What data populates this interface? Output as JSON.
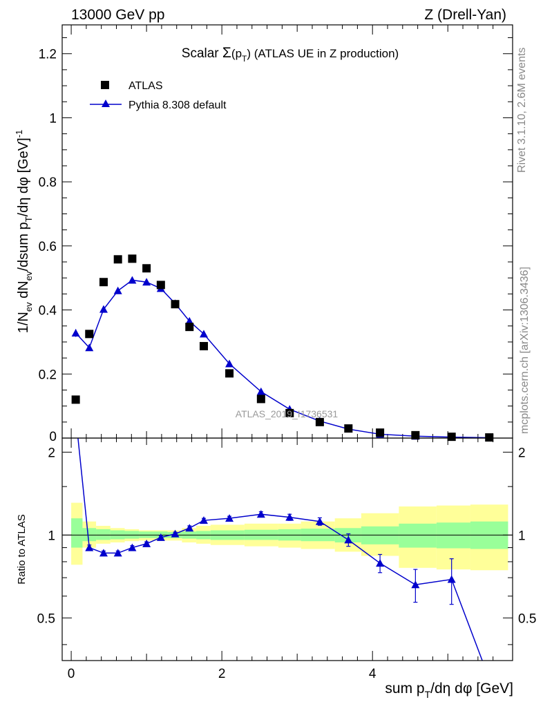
{
  "header": {
    "energy_label": "13000 GeV pp",
    "process_label": "Z (Drell-Yan)"
  },
  "side_labels": {
    "rivet": "Rivet 3.1.10,  2.6M events",
    "mcplots": "mcplots.cern.ch [arXiv:1306.3436]"
  },
  "watermark": "ATLAS_2019_I1736531",
  "colors": {
    "data": "#000000",
    "mc": "#0000cc",
    "band_inner": "#99ff99",
    "band_outer": "#ffff99",
    "reference_line": "#000000"
  },
  "chart_data": [
    {
      "type": "scatter",
      "title": "Scalar Σ(pT) (ATLAS UE in Z production)",
      "title_parts": {
        "pre": "Scalar ",
        "sym": "Σ",
        "paren_open": "(p",
        "sub": "T",
        "paren_close": ")",
        "post": " (ATLAS UE in Z production)"
      },
      "xlabel": "sum pT/dη dφ [GeV]",
      "xlabel_parts": {
        "pre": "sum p",
        "sub": "T",
        "post": "/dη dφ [GeV]"
      },
      "ylabel": "1/Nev dNev/dsum pT/dη dφ  [GeV]-1",
      "ylabel_parts": {
        "a": "1/N",
        "a_sub": "ev",
        "b": " dN",
        "b_sub": "ev",
        "c": "/dsum p",
        "c_sub": "T",
        "d": "/dη dφ  [GeV]",
        "d_sup": "-1"
      },
      "xlim": [
        -0.12,
        5.86
      ],
      "ylim": [
        0,
        1.29
      ],
      "yticks": [
        0.2,
        0.4,
        0.6,
        0.8,
        1,
        1.2
      ],
      "ytick_labels": [
        "0.2",
        "0.4",
        "0.6",
        "0.8",
        "1",
        "1.2"
      ],
      "y_zero_label": "0",
      "legend_position": "top-left",
      "series": [
        {
          "name": "ATLAS",
          "marker": "square",
          "x": [
            0.06,
            0.24,
            0.43,
            0.62,
            0.81,
            1.0,
            1.19,
            1.38,
            1.57,
            1.76,
            2.1,
            2.52,
            2.9,
            3.3,
            3.68,
            4.1,
            4.57,
            5.05,
            5.55
          ],
          "y": [
            0.12,
            0.325,
            0.487,
            0.558,
            0.56,
            0.53,
            0.478,
            0.418,
            0.347,
            0.287,
            0.202,
            0.122,
            0.078,
            0.05,
            0.03,
            0.017,
            0.009,
            0.004,
            0.002
          ]
        },
        {
          "name": "Pythia 8.308 default",
          "marker": "triangle",
          "x": [
            0.06,
            0.24,
            0.43,
            0.62,
            0.81,
            1.0,
            1.19,
            1.38,
            1.57,
            1.76,
            2.1,
            2.52,
            2.9,
            3.3,
            3.68,
            4.1,
            4.57,
            5.05,
            5.55
          ],
          "y": [
            0.328,
            0.282,
            0.402,
            0.46,
            0.493,
            0.487,
            0.467,
            0.42,
            0.365,
            0.325,
            0.232,
            0.145,
            0.09,
            0.053,
            0.028,
            0.012,
            0.006,
            0.003,
            0.001
          ],
          "yerr": [
            0.012,
            0.009,
            0.008,
            0.008,
            0.008,
            0.007,
            0.007,
            0.006,
            0.006,
            0.005,
            0.004,
            0.003,
            0.002,
            0.002,
            0.001,
            0.001,
            0.001,
            0.001,
            0.001
          ]
        }
      ]
    },
    {
      "type": "line",
      "ylabel": "Ratio to ATLAS",
      "xlim": [
        -0.12,
        5.86
      ],
      "ylim": [
        0.35,
        2.25
      ],
      "yticks": [
        0.5,
        1,
        2
      ],
      "ytick_labels": [
        "0.5",
        "1",
        "2"
      ],
      "xticks": [
        0,
        2,
        4
      ],
      "xtick_labels": [
        "0",
        "2",
        "4"
      ],
      "bands": {
        "edges": [
          0.0,
          0.15,
          0.33,
          0.52,
          0.71,
          0.9,
          1.09,
          1.28,
          1.47,
          1.66,
          1.85,
          2.3,
          2.75,
          3.05,
          3.5,
          3.85,
          4.35,
          4.85,
          5.3,
          5.8
        ],
        "inner_lo": [
          0.9,
          0.95,
          0.96,
          0.965,
          0.97,
          0.975,
          0.975,
          0.975,
          0.97,
          0.965,
          0.96,
          0.96,
          0.955,
          0.95,
          0.94,
          0.925,
          0.9,
          0.895,
          0.89
        ],
        "inner_hi": [
          1.15,
          1.06,
          1.05,
          1.04,
          1.035,
          1.03,
          1.03,
          1.025,
          1.03,
          1.035,
          1.04,
          1.045,
          1.05,
          1.055,
          1.06,
          1.075,
          1.1,
          1.11,
          1.12
        ],
        "outer_lo": [
          0.78,
          0.9,
          0.93,
          0.94,
          0.95,
          0.955,
          0.955,
          0.955,
          0.94,
          0.93,
          0.92,
          0.91,
          0.9,
          0.89,
          0.87,
          0.84,
          0.76,
          0.75,
          0.745
        ],
        "outer_hi": [
          1.31,
          1.12,
          1.08,
          1.06,
          1.05,
          1.04,
          1.04,
          1.04,
          1.06,
          1.08,
          1.09,
          1.1,
          1.1,
          1.12,
          1.15,
          1.2,
          1.27,
          1.28,
          1.29
        ]
      },
      "series": [
        {
          "name": "Pythia 8.308 default",
          "x": [
            0.06,
            0.24,
            0.43,
            0.62,
            0.81,
            1.0,
            1.19,
            1.38,
            1.57,
            1.76,
            2.1,
            2.52,
            2.9,
            3.3,
            3.68,
            4.1,
            4.57,
            5.05,
            5.55
          ],
          "y": [
            2.7,
            0.9,
            0.86,
            0.86,
            0.9,
            0.93,
            0.98,
            1.01,
            1.06,
            1.13,
            1.15,
            1.19,
            1.16,
            1.12,
            0.96,
            0.79,
            0.66,
            0.69,
            0.3
          ],
          "yerr": [
            0.0,
            0.02,
            0.015,
            0.015,
            0.015,
            0.015,
            0.015,
            0.015,
            0.02,
            0.02,
            0.02,
            0.025,
            0.03,
            0.035,
            0.05,
            0.06,
            0.09,
            0.13,
            0.0
          ]
        }
      ]
    }
  ]
}
